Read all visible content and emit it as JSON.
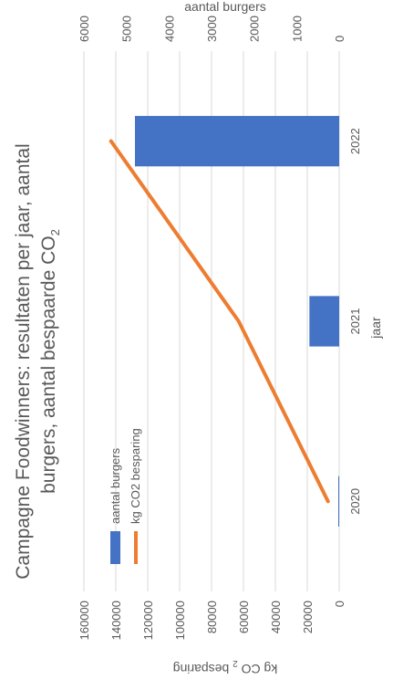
{
  "chart_data": {
    "type": "bar",
    "title_line1": "Campagne Foodwinners: resultaten per jaar, aantal",
    "title_line2_text": "burgers, aantal bespaarde CO",
    "title_line2_sub": "2",
    "xlabel": "jaar",
    "ylabel_left_text": "kg CO ",
    "ylabel_left_sub": "2",
    "ylabel_left_rest": " besparing",
    "ylabel_right": "aantal burgers",
    "categories": [
      "2020",
      "2021",
      "2022"
    ],
    "series": [
      {
        "name": "aantal burgers",
        "kind": "bar",
        "axis": "right",
        "color": "#4472C4",
        "values": [
          15,
          700,
          4800
        ]
      },
      {
        "name": "kg CO2 besparing",
        "kind": "line",
        "axis": "left",
        "color": "#ED7D31",
        "values": [
          7000,
          63000,
          143000
        ]
      }
    ],
    "ylim_left": [
      0,
      160000
    ],
    "ylim_right": [
      0,
      6000
    ],
    "yticks_left": [
      0,
      20000,
      40000,
      60000,
      80000,
      100000,
      120000,
      140000,
      160000
    ],
    "yticks_right": [
      0,
      1000,
      2000,
      3000,
      4000,
      5000,
      6000
    ],
    "grid": true,
    "legend_position": "inside top-left"
  }
}
